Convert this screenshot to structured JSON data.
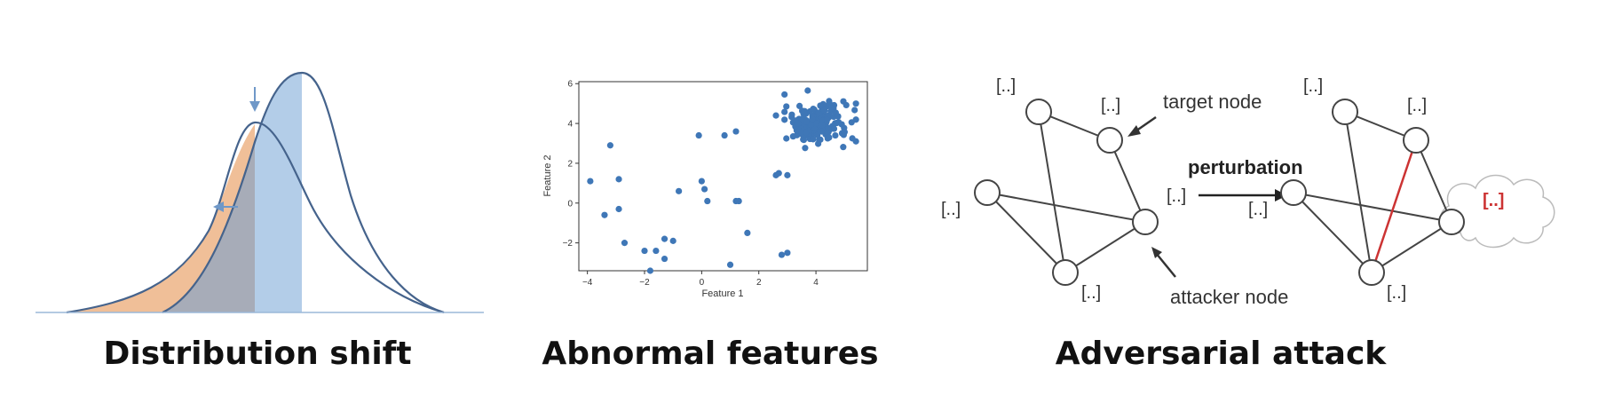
{
  "panels": {
    "distribution_shift": {
      "caption": "Distribution shift",
      "colors": {
        "orange": "#f0bf98",
        "blue": "#b3cde8",
        "overlap": "#a7acb8",
        "curve": "#45638c",
        "arrow": "#6f98c8"
      },
      "icons": [
        "down-arrow-icon",
        "left-arrow-icon"
      ]
    },
    "abnormal_features": {
      "caption": "Abnormal features",
      "xlabel": "Feature 1",
      "ylabel": "Feature 2",
      "chart_data": {
        "type": "scatter",
        "xlabel": "Feature 1",
        "ylabel": "Feature 2",
        "xlim": [
          -4.3,
          5.8
        ],
        "ylim": [
          -3.4,
          6.1
        ],
        "xticks": [
          "−4",
          "−2",
          "0",
          "2",
          "4"
        ],
        "xtick_values": [
          -4,
          -2,
          0,
          2,
          4
        ],
        "yticks": [
          "−2",
          "0",
          "2",
          "4",
          "6"
        ],
        "ytick_values": [
          -2,
          0,
          2,
          4,
          6
        ],
        "color": "#3f77b7",
        "outliers": [
          [
            -3.9,
            1.1
          ],
          [
            -3.2,
            2.9
          ],
          [
            -2.9,
            1.2
          ],
          [
            -3.4,
            -0.6
          ],
          [
            -2.9,
            -0.3
          ],
          [
            -2.7,
            -2.0
          ],
          [
            -2.0,
            -2.4
          ],
          [
            -1.6,
            -2.4
          ],
          [
            -1.8,
            -3.4
          ],
          [
            -1.3,
            -1.8
          ],
          [
            -1.3,
            -2.8
          ],
          [
            -1.0,
            -1.9
          ],
          [
            -0.8,
            0.6
          ],
          [
            -0.1,
            3.4
          ],
          [
            0.0,
            1.1
          ],
          [
            0.1,
            0.7
          ],
          [
            0.2,
            0.1
          ],
          [
            0.8,
            3.4
          ],
          [
            1.0,
            -3.1
          ],
          [
            1.2,
            3.6
          ],
          [
            1.2,
            0.1
          ],
          [
            1.3,
            0.1
          ],
          [
            1.6,
            -1.5
          ],
          [
            2.6,
            1.4
          ],
          [
            2.7,
            1.5
          ],
          [
            2.6,
            4.4
          ],
          [
            2.8,
            -2.6
          ],
          [
            3.0,
            -2.5
          ],
          [
            3.0,
            1.4
          ],
          [
            5.4,
            5.0
          ],
          [
            5.4,
            3.1
          ]
        ],
        "cluster": {
          "center": [
            4.0,
            4.0
          ],
          "spread": [
            0.55,
            0.5
          ],
          "count": 190
        }
      }
    },
    "adversarial_attack": {
      "caption": "Adversarial attack",
      "placeholder": "[..]",
      "target_label": "target node",
      "attacker_label": "attacker node",
      "perturbation_label": "perturbation",
      "colors": {
        "edge": "#444444",
        "perturbed_edge": "#cc3333",
        "perturbed_label": "#cc3333",
        "cloud": "#bbbbbb"
      },
      "icons": [
        "right-arrow-icon",
        "cloud-icon"
      ]
    }
  }
}
